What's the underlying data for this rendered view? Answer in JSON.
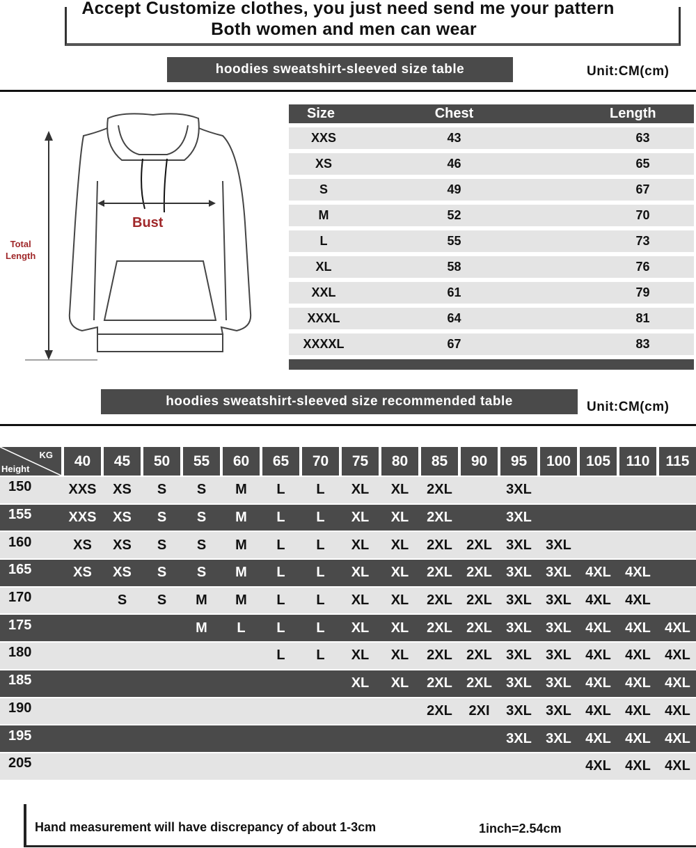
{
  "header": {
    "line1": "Accept Customize clothes, you just need send me your pattern",
    "line2": "Both women and men can wear"
  },
  "size_section": {
    "title": "hoodies sweatshirt-sleeved size  table",
    "unit": "Unit:CM(cm)",
    "columns": [
      "Size",
      "Chest",
      "Length"
    ],
    "rows": [
      [
        "XXS",
        "43",
        "63"
      ],
      [
        "XS",
        "46",
        "65"
      ],
      [
        "S",
        "49",
        "67"
      ],
      [
        "M",
        "52",
        "70"
      ],
      [
        "L",
        "55",
        "73"
      ],
      [
        "XL",
        "58",
        "76"
      ],
      [
        "XXL",
        "61",
        "79"
      ],
      [
        "XXXL",
        "64",
        "81"
      ],
      [
        "XXXXL",
        "67",
        "83"
      ]
    ]
  },
  "diagram": {
    "bust_label": "Bust",
    "length_label_1": "Total",
    "length_label_2": "Length",
    "bust_color": "#a0282a"
  },
  "rec_section": {
    "title": "hoodies sweatshirt-sleeved size recommended table",
    "unit": "Unit:CM(cm)",
    "corner_top": "KG",
    "corner_bottom": "Height",
    "weights": [
      "40",
      "45",
      "50",
      "55",
      "60",
      "65",
      "70",
      "75",
      "80",
      "85",
      "90",
      "95",
      "100",
      "105",
      "110",
      "115"
    ],
    "rows": [
      {
        "height": "150",
        "sizes": [
          "XXS",
          "XS",
          "S",
          "S",
          "M",
          "L",
          "L",
          "XL",
          "XL",
          "2XL",
          "",
          "3XL",
          "",
          "",
          "",
          ""
        ]
      },
      {
        "height": "155",
        "sizes": [
          "XXS",
          "XS",
          "S",
          "S",
          "M",
          "L",
          "L",
          "XL",
          "XL",
          "2XL",
          "",
          "3XL",
          "",
          "",
          "",
          ""
        ]
      },
      {
        "height": "160",
        "sizes": [
          "XS",
          "XS",
          "S",
          "S",
          "M",
          "L",
          "L",
          "XL",
          "XL",
          "2XL",
          "2XL",
          "3XL",
          "3XL",
          "",
          "",
          ""
        ]
      },
      {
        "height": "165",
        "sizes": [
          "XS",
          "XS",
          "S",
          "S",
          "M",
          "L",
          "L",
          "XL",
          "XL",
          "2XL",
          "2XL",
          "3XL",
          "3XL",
          "4XL",
          "4XL",
          ""
        ]
      },
      {
        "height": "170",
        "sizes": [
          "",
          "S",
          "S",
          "M",
          "M",
          "L",
          "L",
          "XL",
          "XL",
          "2XL",
          "2XL",
          "3XL",
          "3XL",
          "4XL",
          "4XL",
          ""
        ]
      },
      {
        "height": "175",
        "sizes": [
          "",
          "",
          "",
          "M",
          "L",
          "L",
          "L",
          "XL",
          "XL",
          "2XL",
          "2XL",
          "3XL",
          "3XL",
          "4XL",
          "4XL",
          "4XL"
        ]
      },
      {
        "height": "180",
        "sizes": [
          "",
          "",
          "",
          "",
          "",
          "L",
          "L",
          "XL",
          "XL",
          "2XL",
          "2XL",
          "3XL",
          "3XL",
          "4XL",
          "4XL",
          "4XL"
        ]
      },
      {
        "height": "185",
        "sizes": [
          "",
          "",
          "",
          "",
          "",
          "",
          "",
          "XL",
          "XL",
          "2XL",
          "2XL",
          "3XL",
          "3XL",
          "4XL",
          "4XL",
          "4XL"
        ]
      },
      {
        "height": "190",
        "sizes": [
          "",
          "",
          "",
          "",
          "",
          "",
          "",
          "",
          "",
          "2XL",
          "2XI",
          "3XL",
          "3XL",
          "4XL",
          "4XL",
          "4XL"
        ]
      },
      {
        "height": "195",
        "sizes": [
          "",
          "",
          "",
          "",
          "",
          "",
          "",
          "",
          "",
          "",
          "",
          "3XL",
          "3XL",
          "4XL",
          "4XL",
          "4XL"
        ]
      },
      {
        "height": "205",
        "sizes": [
          "",
          "",
          "",
          "",
          "",
          "",
          "",
          "",
          "",
          "",
          "",
          "",
          "",
          "4XL",
          "4XL",
          "4XL"
        ]
      }
    ]
  },
  "footer": {
    "note": "Hand measurement will have discrepancy of about  1-3cm",
    "conversion": "1inch=2.54cm"
  }
}
